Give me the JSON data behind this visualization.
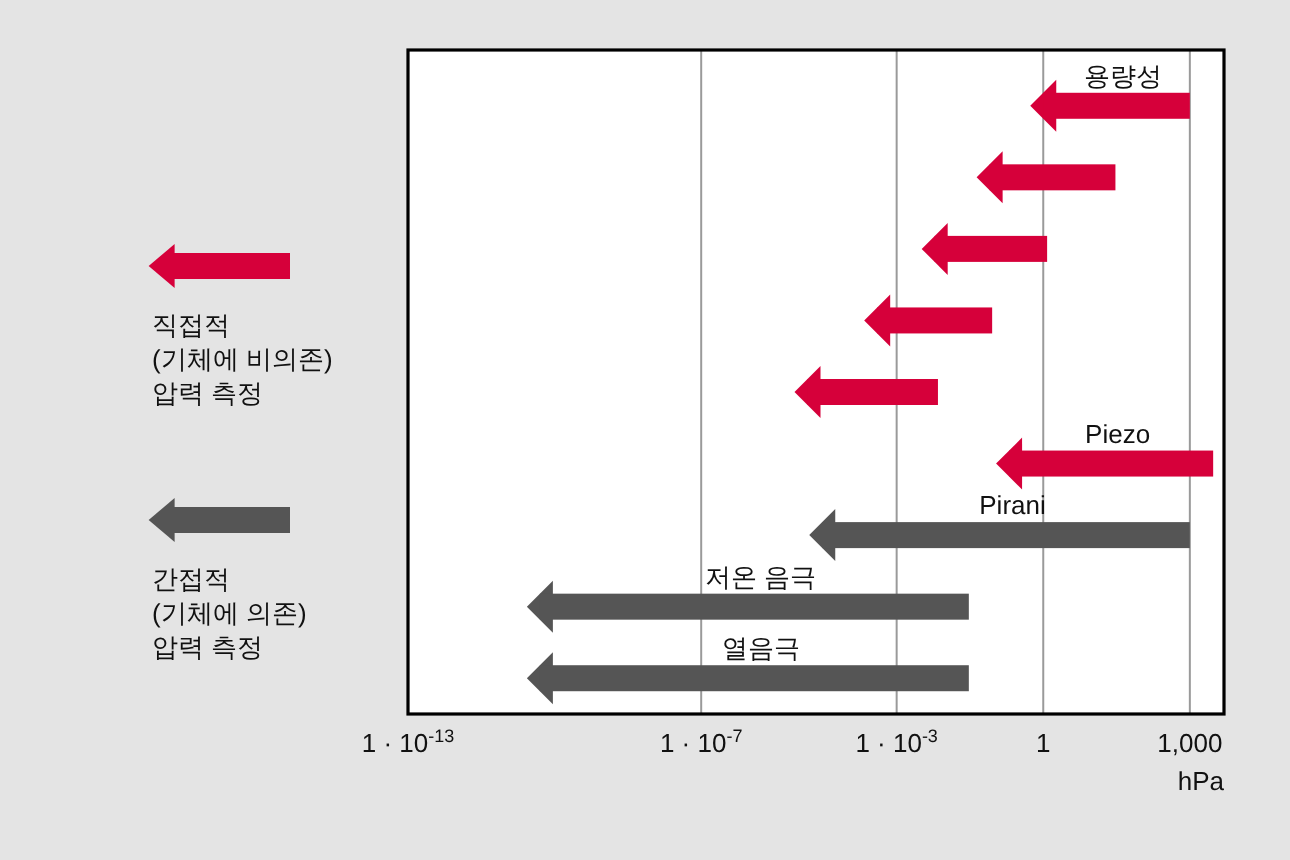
{
  "chart_data": {
    "type": "bar",
    "orientation": "horizontal",
    "log": "x",
    "grid": "x",
    "legend": "left",
    "categories": [
      "용량성",
      null,
      null,
      null,
      null,
      "Piezo",
      "Pirani",
      "저온 음극",
      "열음극"
    ],
    "series": [
      {
        "name": "직접적\n(기체에 비의존)\n압력 측정",
        "color": "#d6003a",
        "base": [
          1,
          0.08,
          0.006,
          0.0004,
          1.5e-05,
          0.2,
          null,
          null,
          null
        ],
        "values": [
          999,
          29.92,
          1.194,
          0.0896,
          0.006985,
          2999.8,
          null,
          null,
          null
        ]
      },
      {
        "name": "간접적\n(기체에 의존)\n압력 측정",
        "color": "#555555",
        "base": [
          null,
          null,
          null,
          null,
          null,
          null,
          3e-05,
          5e-11,
          5e-11
        ],
        "values": [
          null,
          null,
          null,
          null,
          null,
          null,
          999.99997,
          0.02999999995,
          0.02999999995
        ]
      }
    ],
    "xlabel": "hPa",
    "xlim": [
      1e-13,
      5000
    ],
    "xticks": [
      {
        "value": 1e-13,
        "label": "1 · 10$^{-13}$"
      },
      {
        "value": 1e-07,
        "label": "1 · 10$^{-7}$"
      },
      {
        "value": 0.001,
        "label": "1 · 10$^{-3}$"
      },
      {
        "value": 1,
        "label": "1"
      },
      {
        "value": 1000,
        "label": "1,000"
      }
    ]
  }
}
